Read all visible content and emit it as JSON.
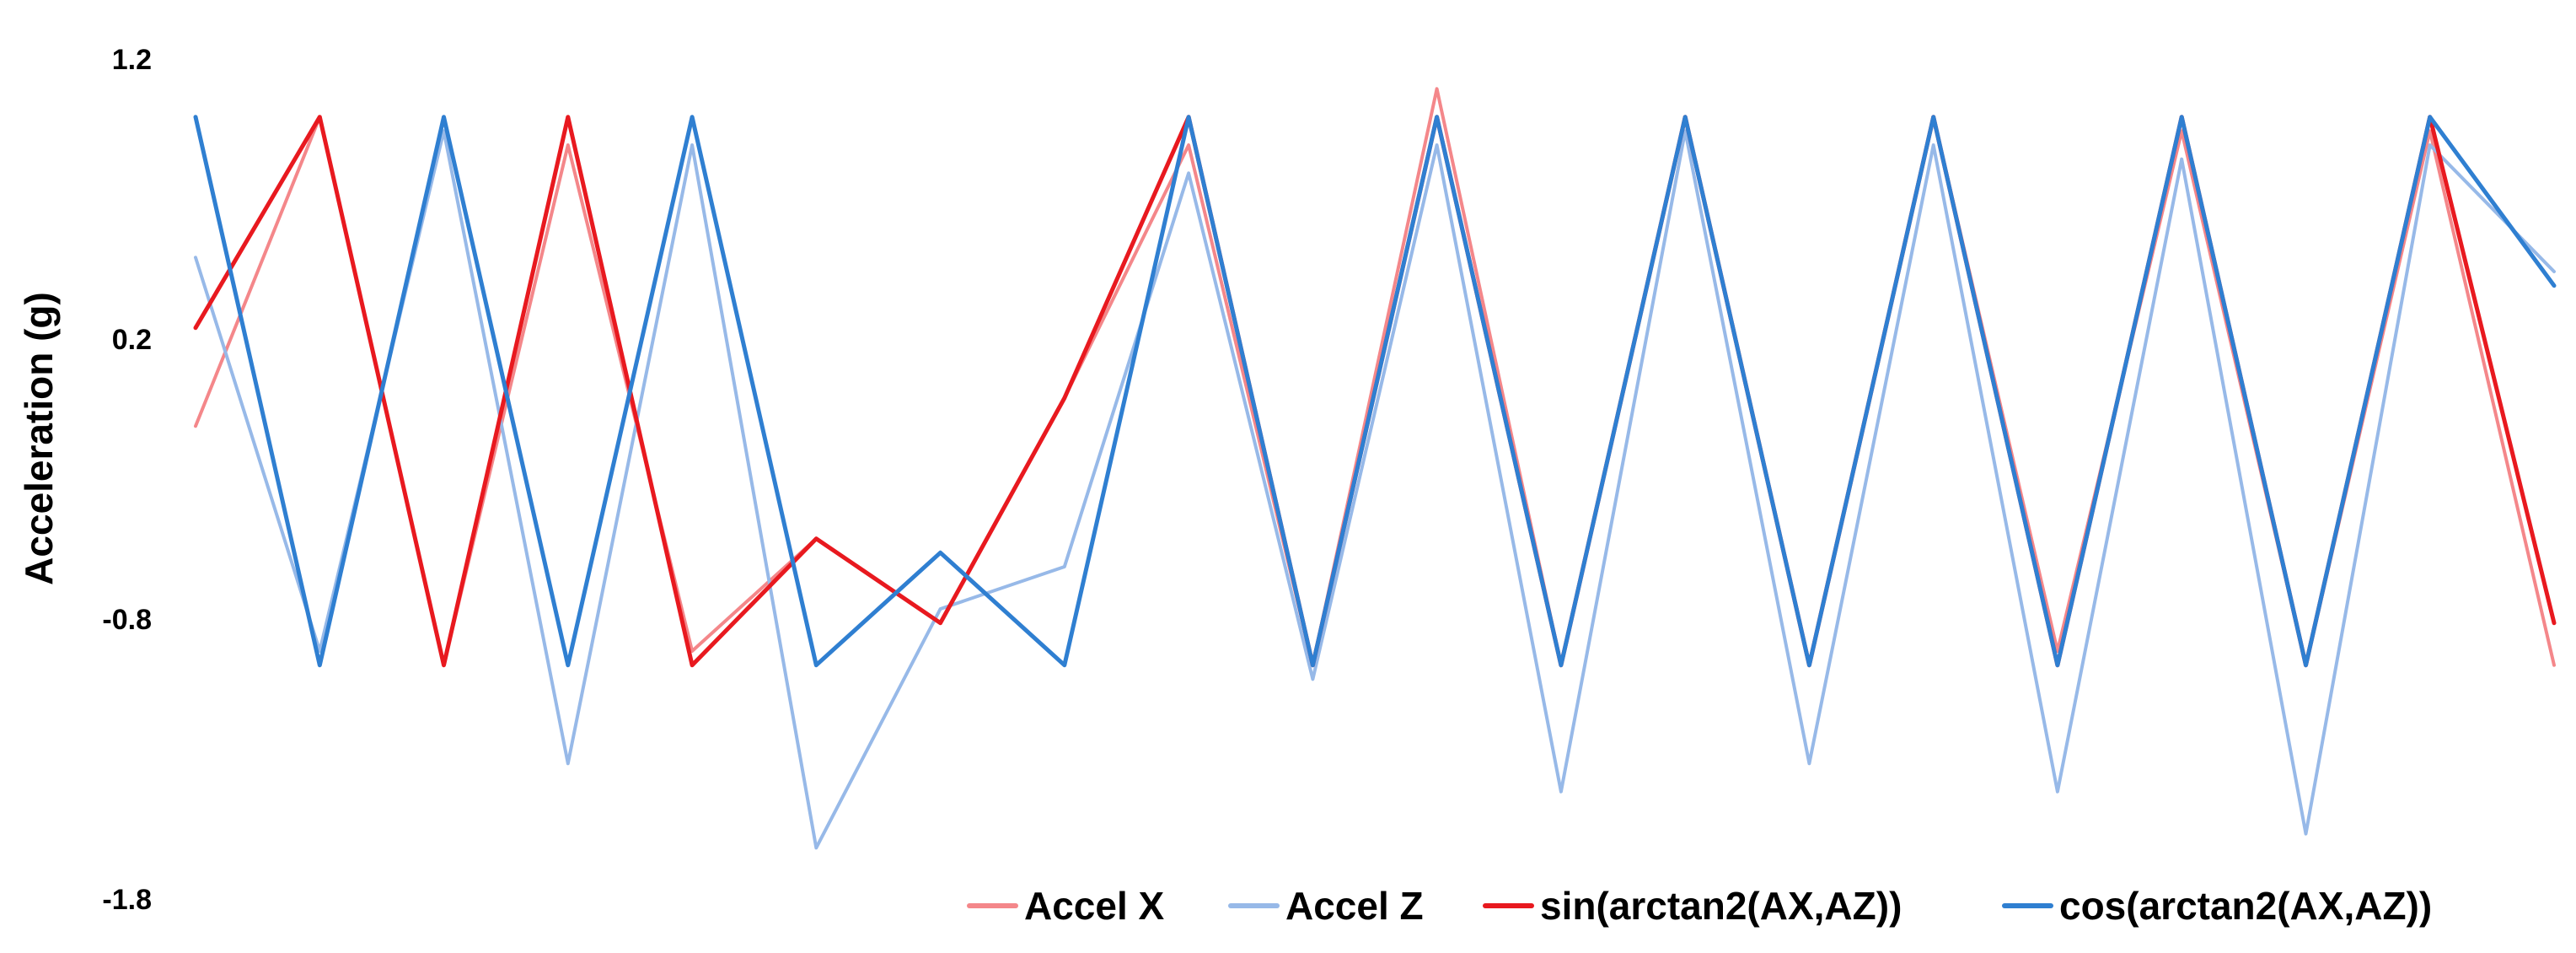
{
  "chart_data": {
    "type": "line",
    "title": "",
    "xlabel": "",
    "ylabel": "Acceleration (g)",
    "ylim": [
      -1.8,
      1.2
    ],
    "yticks": [
      "1.2",
      "0.2",
      "-0.8",
      "-1.8"
    ],
    "grid": false,
    "legend_position": "bottom-right",
    "x_count": 20,
    "series": [
      {
        "name": "Accel X",
        "color": "#f4878a",
        "values": [
          -0.1,
          1.0,
          -0.95,
          0.9,
          -0.9,
          -0.5,
          -0.8,
          0.0,
          0.9,
          -0.95,
          1.1,
          -0.95,
          1.0,
          -0.95,
          1.0,
          -0.9,
          0.95,
          -0.95,
          0.95,
          -0.95
        ]
      },
      {
        "name": "Accel Z",
        "color": "#97b9e8",
        "values": [
          0.5,
          -0.9,
          0.95,
          -1.3,
          0.9,
          -1.6,
          -0.75,
          -0.6,
          0.8,
          -1.0,
          0.9,
          -1.4,
          0.95,
          -1.3,
          0.9,
          -1.4,
          0.85,
          -1.55,
          0.9,
          0.45
        ]
      },
      {
        "name": "sin(arctan2(AX,AZ))",
        "color": "#e8191f",
        "values": [
          0.25,
          1.0,
          -0.95,
          1.0,
          -0.95,
          -0.5,
          -0.8,
          0.0,
          1.0,
          -0.95,
          1.0,
          -0.95,
          1.0,
          -0.95,
          1.0,
          -0.95,
          1.0,
          -0.95,
          1.0,
          -0.8
        ]
      },
      {
        "name": "cos(arctan2(AX,AZ))",
        "color": "#2f7fd1",
        "values": [
          1.0,
          -0.95,
          1.0,
          -0.95,
          1.0,
          -0.95,
          -0.55,
          -0.95,
          1.0,
          -0.95,
          1.0,
          -0.95,
          1.0,
          -0.95,
          1.0,
          -0.95,
          1.0,
          -0.95,
          1.0,
          0.4
        ]
      }
    ]
  }
}
